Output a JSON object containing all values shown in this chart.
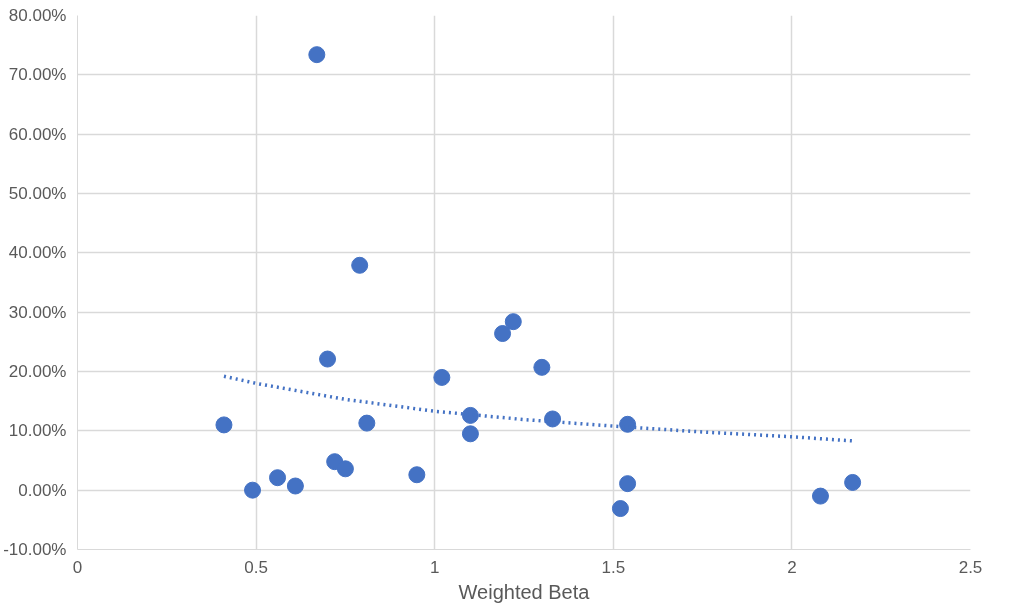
{
  "chart_data": {
    "type": "scatter",
    "xlabel": "Weighted Beta",
    "xlim": [
      0,
      2.5
    ],
    "xticks": [
      0,
      0.5,
      1,
      1.5,
      2,
      2.5
    ],
    "ylim": [
      -10,
      80
    ],
    "yticks": [
      {
        "value": -10,
        "label": "-10.00%"
      },
      {
        "value": 0,
        "label": "0.00%"
      },
      {
        "value": 10,
        "label": "10.00%"
      },
      {
        "value": 20,
        "label": "20.00%"
      },
      {
        "value": 30,
        "label": "30.00%"
      },
      {
        "value": 40,
        "label": "40.00%"
      },
      {
        "value": 50,
        "label": "50.00%"
      },
      {
        "value": 60,
        "label": "60.00%"
      },
      {
        "value": 70,
        "label": "70.00%"
      },
      {
        "value": 80,
        "label": "80.00%"
      }
    ],
    "grid": true,
    "marker": "circle",
    "series": [
      {
        "color": "#4472c4",
        "x": [
          0.41,
          0.49,
          0.56,
          0.61,
          0.67,
          0.7,
          0.72,
          0.75,
          0.79,
          0.81,
          0.95,
          1.02,
          1.1,
          1.1,
          1.19,
          1.22,
          1.3,
          1.33,
          1.52,
          1.54,
          1.54,
          2.08,
          2.17
        ],
        "values": [
          11.0,
          0.0,
          2.1,
          0.7,
          73.4,
          22.1,
          4.8,
          3.6,
          37.9,
          11.3,
          2.6,
          19.0,
          12.6,
          9.5,
          26.4,
          28.4,
          20.7,
          12.0,
          -3.1,
          11.1,
          1.1,
          -1.0,
          1.3
        ]
      },
      {
        "type": "line",
        "color": "#4472c4",
        "line_style": "dotted",
        "marker": "none",
        "x": [
          0.41,
          0.5,
          0.75,
          1.0,
          1.25,
          1.5,
          1.75,
          2.0,
          2.17
        ],
        "values": [
          19.2,
          18.0,
          15.3,
          13.3,
          11.9,
          10.8,
          9.8,
          9.0,
          8.3
        ]
      }
    ]
  }
}
